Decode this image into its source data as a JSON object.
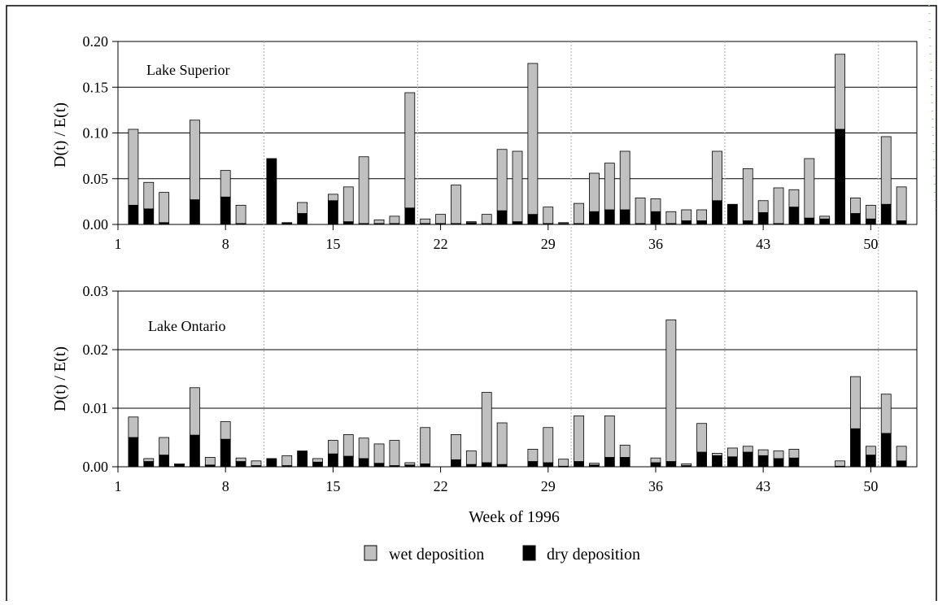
{
  "colors": {
    "wet": "#c0c0c0",
    "dry": "#000000",
    "grid": "#000000",
    "divider": "#aaaaaa",
    "accent_dots": "#7fd97f"
  },
  "legend": {
    "wet_label": "wet deposition",
    "dry_label": "dry deposition"
  },
  "xlabel": "Week of 1996",
  "chart_data": [
    {
      "type": "bar",
      "stacked": true,
      "panel_label": "Lake Superior",
      "ylabel": "D(t) / E(t)",
      "ylim": [
        0,
        0.2
      ],
      "yticks": [
        "0.00",
        "0.05",
        "0.10",
        "0.15",
        "0.20"
      ],
      "xlim": [
        1,
        53
      ],
      "xticks": [
        "1",
        "8",
        "15",
        "22",
        "29",
        "36",
        "43",
        "50"
      ],
      "grid": true,
      "weeks": [
        2,
        3,
        4,
        6,
        8,
        9,
        11,
        12,
        13,
        15,
        16,
        17,
        18,
        19,
        20,
        21,
        22,
        23,
        24,
        25,
        26,
        27,
        28,
        29,
        30,
        31,
        32,
        33,
        34,
        35,
        36,
        37,
        38,
        39,
        40,
        41,
        42,
        43,
        44,
        45,
        46,
        47,
        48,
        49,
        50,
        51,
        52
      ],
      "series": [
        {
          "name": "dry deposition",
          "values": [
            0.021,
            0.017,
            0.002,
            0.027,
            0.03,
            0.001,
            0.072,
            0.002,
            0.012,
            0.026,
            0.003,
            0.001,
            0.001,
            0.001,
            0.018,
            0.001,
            0.001,
            0.001,
            0.002,
            0.001,
            0.015,
            0.003,
            0.011,
            0.001,
            0.001,
            0.001,
            0.014,
            0.016,
            0.016,
            0.001,
            0.014,
            0.001,
            0.004,
            0.004,
            0.026,
            0.022,
            0.004,
            0.013,
            0.001,
            0.019,
            0.007,
            0.006,
            0.104,
            0.012,
            0.006,
            0.022,
            0.004
          ]
        },
        {
          "name": "wet deposition",
          "values": [
            0.083,
            0.029,
            0.033,
            0.087,
            0.029,
            0.02,
            0.0,
            0.0,
            0.012,
            0.007,
            0.038,
            0.073,
            0.004,
            0.008,
            0.126,
            0.005,
            0.01,
            0.042,
            0.001,
            0.01,
            0.067,
            0.077,
            0.165,
            0.018,
            0.001,
            0.022,
            0.042,
            0.051,
            0.064,
            0.028,
            0.014,
            0.013,
            0.012,
            0.012,
            0.054,
            0.0,
            0.057,
            0.013,
            0.039,
            0.019,
            0.065,
            0.003,
            0.082,
            0.017,
            0.015,
            0.074,
            0.037
          ]
        }
      ]
    },
    {
      "type": "bar",
      "stacked": true,
      "panel_label": "Lake Ontario",
      "ylabel": "D(t) / E(t)",
      "ylim": [
        0,
        0.03
      ],
      "yticks": [
        "0.00",
        "0.01",
        "0.02",
        "0.03"
      ],
      "xlim": [
        1,
        53
      ],
      "xticks": [
        "1",
        "8",
        "15",
        "22",
        "29",
        "36",
        "43",
        "50"
      ],
      "grid": true,
      "weeks": [
        2,
        3,
        4,
        5,
        6,
        7,
        8,
        9,
        10,
        11,
        12,
        13,
        14,
        15,
        16,
        17,
        18,
        19,
        20,
        21,
        23,
        24,
        25,
        26,
        28,
        29,
        30,
        31,
        32,
        33,
        34,
        36,
        37,
        38,
        39,
        40,
        41,
        42,
        43,
        44,
        45,
        48,
        49,
        50,
        51,
        52
      ],
      "series": [
        {
          "name": "dry deposition",
          "values": [
            0.005,
            0.0009,
            0.002,
            0.0004,
            0.0054,
            0.0003,
            0.0047,
            0.0009,
            0.0002,
            0.0014,
            0.0002,
            0.0027,
            0.0008,
            0.0022,
            0.0018,
            0.0014,
            0.0006,
            0.0002,
            0.0003,
            0.0005,
            0.0012,
            0.0004,
            0.0007,
            0.0004,
            0.0009,
            0.0007,
            0.0001,
            0.0009,
            0.0003,
            0.0016,
            0.0016,
            0.0007,
            0.0009,
            0.0002,
            0.0025,
            0.0019,
            0.0017,
            0.0025,
            0.0019,
            0.0014,
            0.0015,
            0.0001,
            0.0065,
            0.002,
            0.0057,
            0.001
          ]
        },
        {
          "name": "wet deposition",
          "values": [
            0.0035,
            0.0005,
            0.003,
            0.0001,
            0.0081,
            0.0013,
            0.003,
            0.0006,
            0.0008,
            0.0,
            0.0017,
            0.0,
            0.0006,
            0.0023,
            0.0037,
            0.0035,
            0.0033,
            0.0043,
            0.0004,
            0.0062,
            0.0043,
            0.0023,
            0.012,
            0.0071,
            0.0021,
            0.006,
            0.0012,
            0.0078,
            0.0003,
            0.0071,
            0.0021,
            0.0008,
            0.0242,
            0.0003,
            0.0049,
            0.0004,
            0.0015,
            0.001,
            0.001,
            0.0013,
            0.0015,
            0.0009,
            0.0089,
            0.0015,
            0.0067,
            0.0025
          ]
        }
      ]
    }
  ]
}
